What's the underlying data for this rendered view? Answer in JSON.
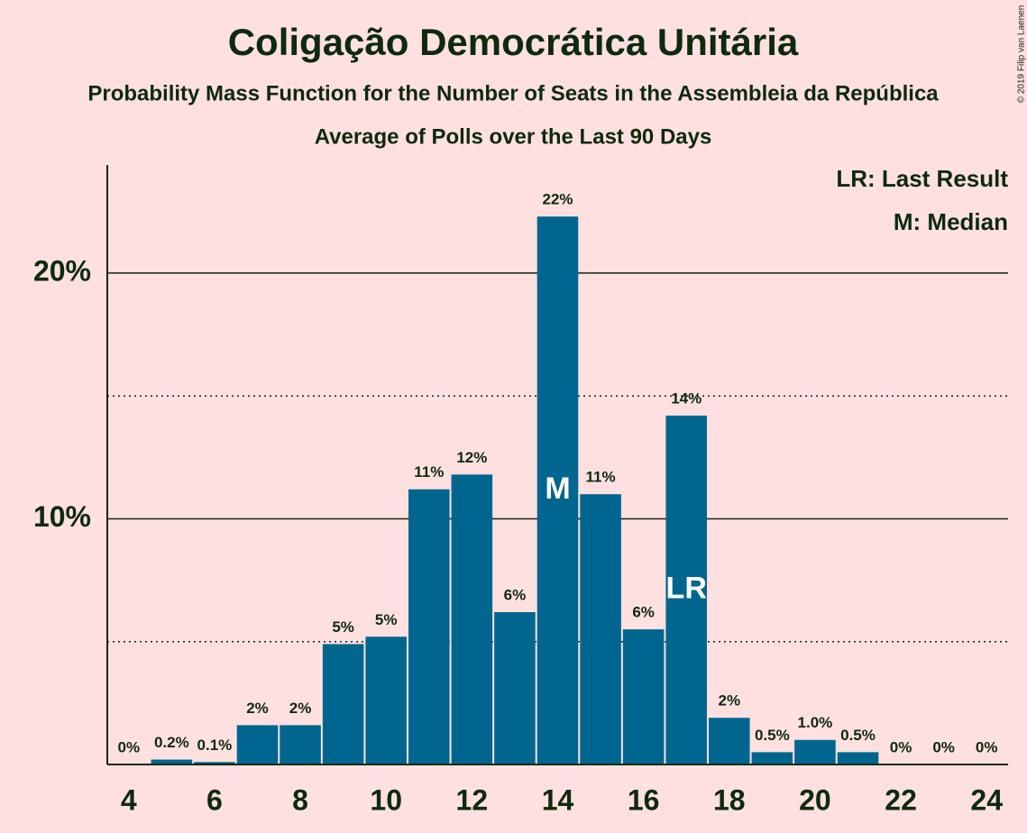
{
  "chart_data": {
    "type": "bar",
    "title": "Coligação Democrática Unitária",
    "subtitle": "Probability Mass Function for the Number of Seats in the Assembleia da República",
    "subtitle2": "Average of Polls over the Last 90 Days",
    "legend": [
      "LR: Last Result",
      "M: Median"
    ],
    "copyright": "© 2019 Filip van Laenen",
    "x": [
      4,
      5,
      6,
      7,
      8,
      9,
      10,
      11,
      12,
      13,
      14,
      15,
      16,
      17,
      18,
      19,
      20,
      21,
      22,
      23,
      24
    ],
    "values": [
      0,
      0.2,
      0.1,
      1.6,
      1.6,
      4.9,
      5.2,
      11.2,
      11.8,
      6.2,
      22.3,
      11.0,
      5.5,
      14.2,
      1.9,
      0.5,
      1.0,
      0.5,
      0,
      0,
      0
    ],
    "value_labels": [
      "0%",
      "0.2%",
      "0.1%",
      "2%",
      "2%",
      "5%",
      "5%",
      "11%",
      "12%",
      "6%",
      "22%",
      "11%",
      "6%",
      "14%",
      "2%",
      "0.5%",
      "1.0%",
      "0.5%",
      "0%",
      "0%",
      "0%"
    ],
    "color": "#006690",
    "xlim": [
      3.5,
      24.5
    ],
    "xticks": [
      4,
      6,
      8,
      10,
      12,
      14,
      16,
      18,
      20,
      22,
      24
    ],
    "ylim": [
      0,
      24.4
    ],
    "yticks": [
      {
        "value": 10,
        "label": "10%"
      },
      {
        "value": 20,
        "label": "20%"
      }
    ],
    "minor_yticks": [
      5,
      15
    ],
    "grid": true,
    "annotations": [
      {
        "x": 14,
        "label": "M"
      },
      {
        "x": 17,
        "label": "LR"
      }
    ]
  }
}
